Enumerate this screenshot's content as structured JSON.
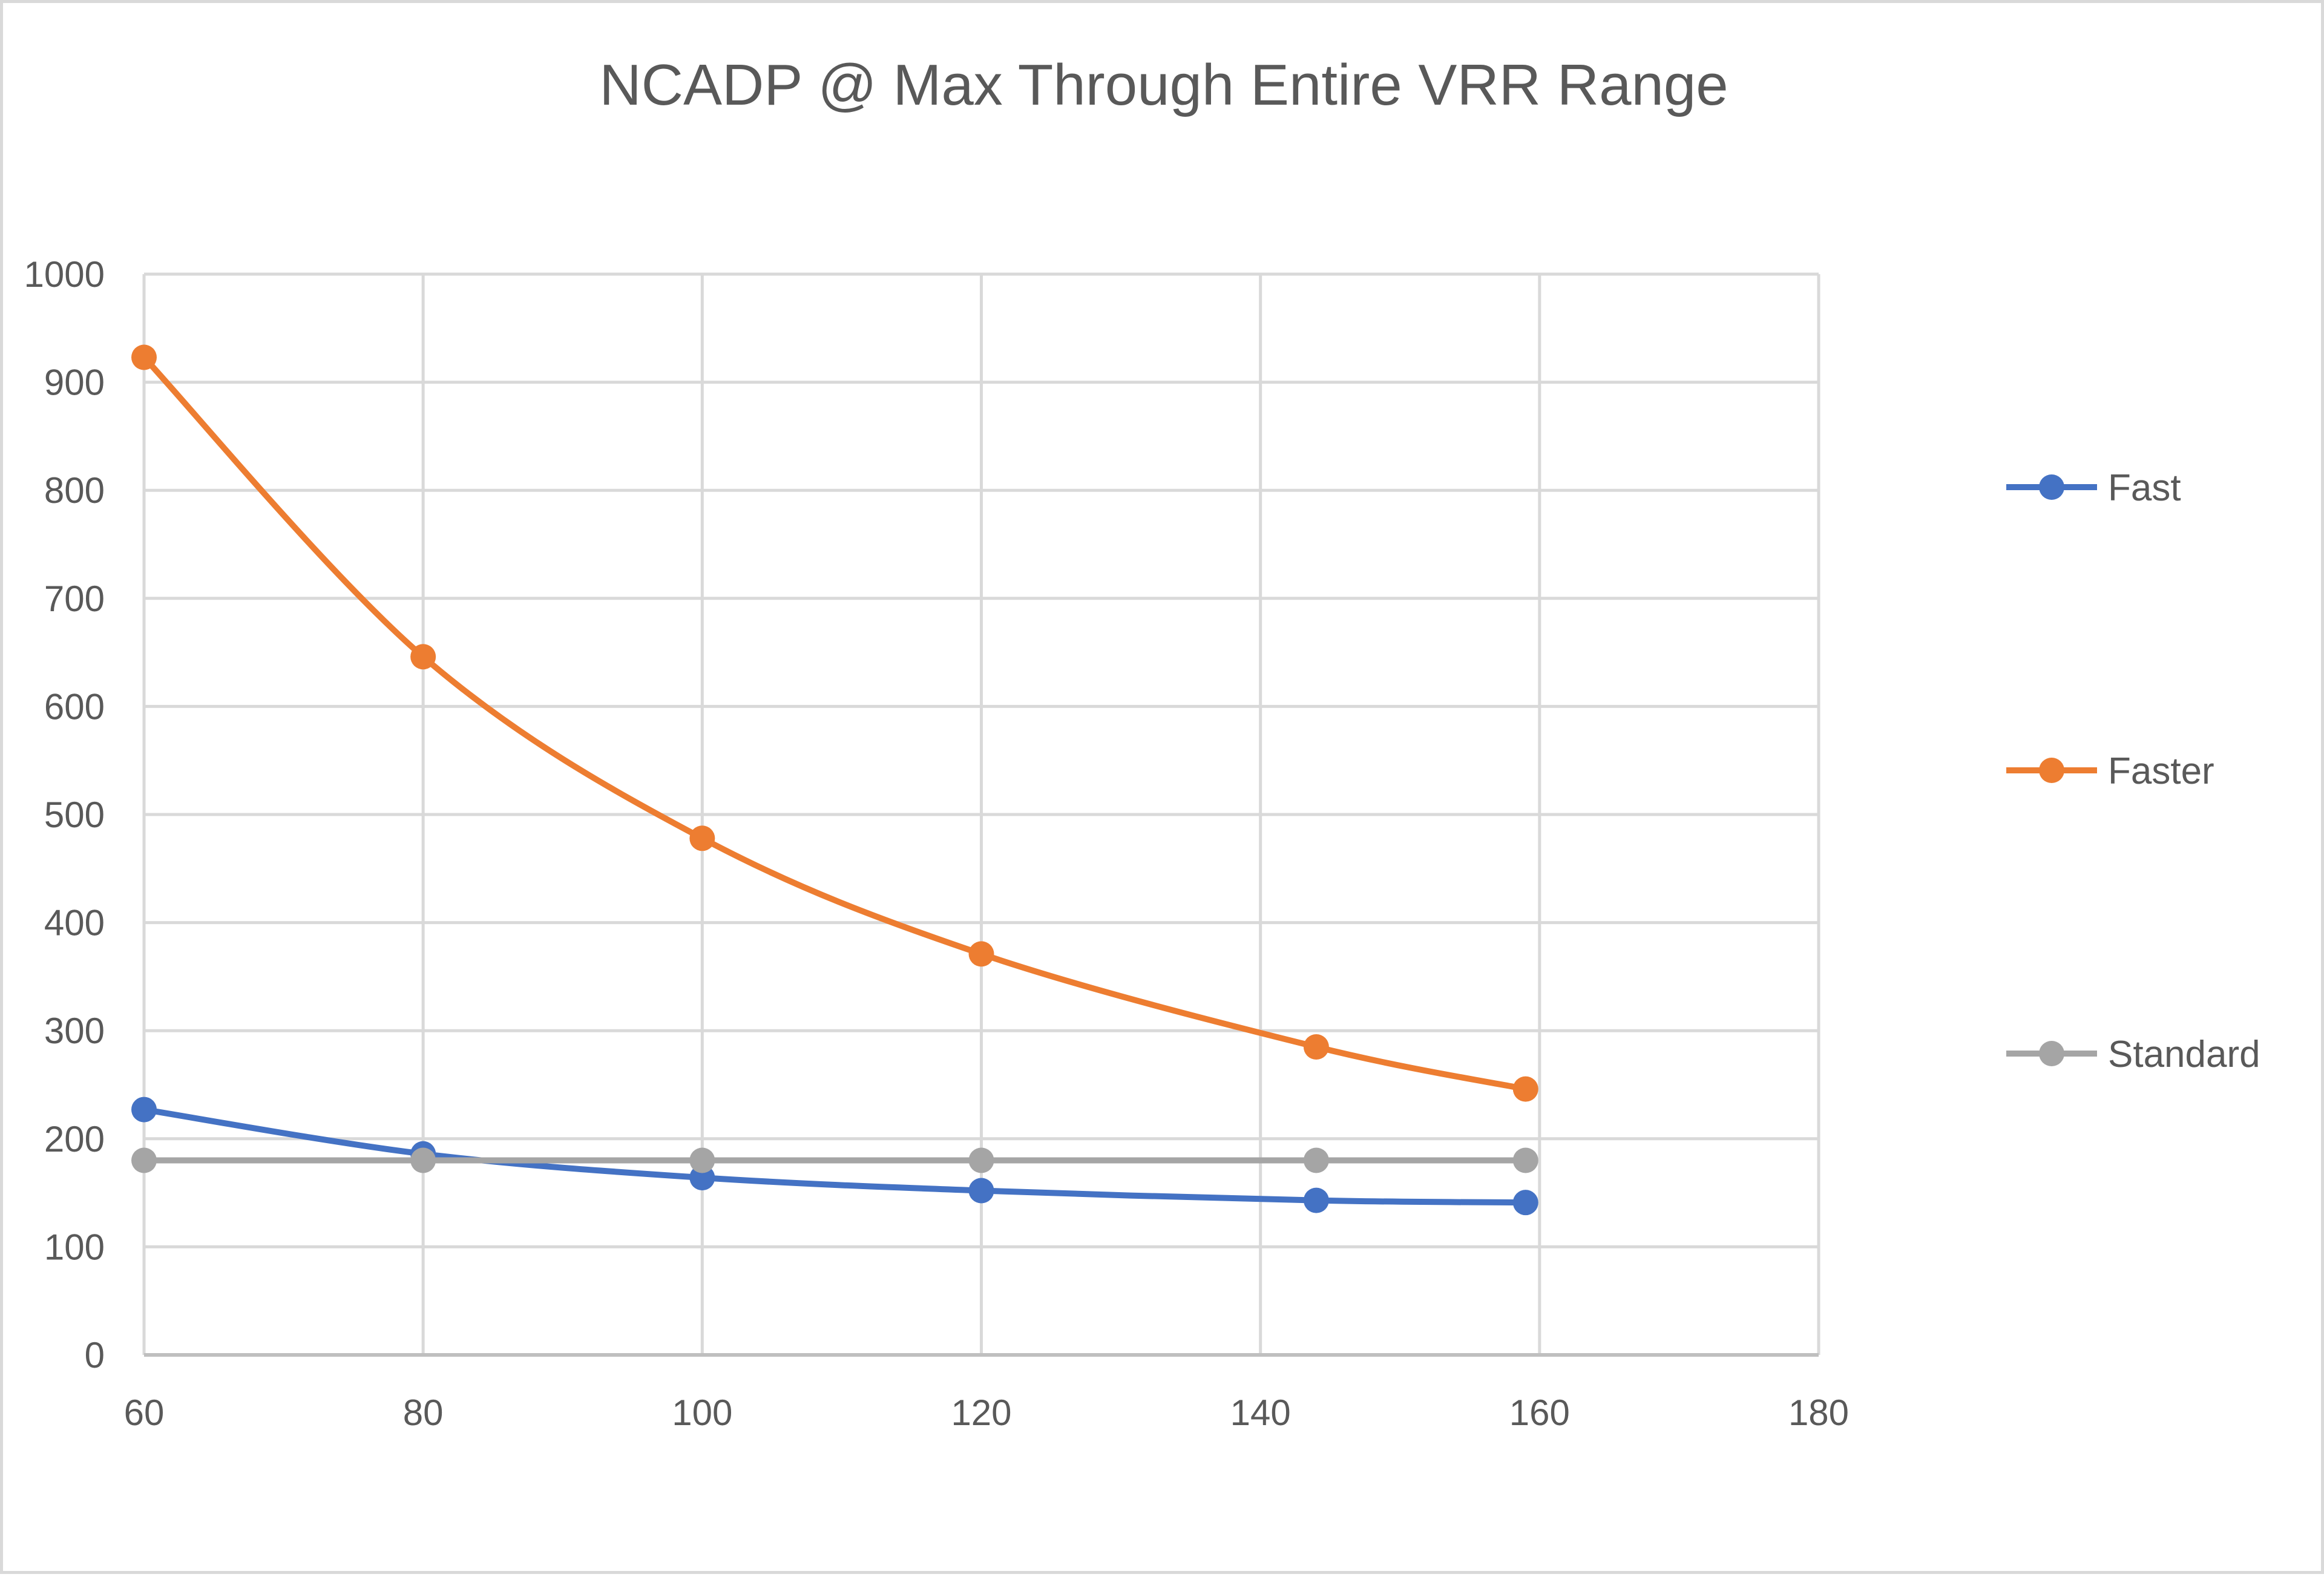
{
  "chart_data": {
    "type": "line",
    "title": "NCADP @ Max Through Entire VRR Range",
    "xlabel": "",
    "ylabel": "",
    "xlim": [
      60,
      180
    ],
    "ylim": [
      0,
      1000
    ],
    "x_ticks": [
      60,
      80,
      100,
      120,
      140,
      160,
      180
    ],
    "y_ticks": [
      0,
      100,
      200,
      300,
      400,
      500,
      600,
      700,
      800,
      900,
      1000
    ],
    "grid": true,
    "smooth": true,
    "legend_position": "right",
    "series": [
      {
        "name": "Fast",
        "color": "#4472c4",
        "points": [
          {
            "x": 60,
            "y": 227
          },
          {
            "x": 80,
            "y": 186
          },
          {
            "x": 100,
            "y": 164
          },
          {
            "x": 120,
            "y": 152
          },
          {
            "x": 144,
            "y": 143
          },
          {
            "x": 159,
            "y": 141
          }
        ]
      },
      {
        "name": "Faster",
        "color": "#ed7d31",
        "points": [
          {
            "x": 60,
            "y": 923
          },
          {
            "x": 80,
            "y": 646
          },
          {
            "x": 100,
            "y": 478
          },
          {
            "x": 120,
            "y": 371
          },
          {
            "x": 144,
            "y": 285
          },
          {
            "x": 159,
            "y": 246
          }
        ]
      },
      {
        "name": "Standard",
        "color": "#a5a5a5",
        "points": [
          {
            "x": 60,
            "y": 180
          },
          {
            "x": 80,
            "y": 180
          },
          {
            "x": 100,
            "y": 180
          },
          {
            "x": 120,
            "y": 180
          },
          {
            "x": 144,
            "y": 180
          },
          {
            "x": 159,
            "y": 180
          }
        ]
      }
    ]
  }
}
